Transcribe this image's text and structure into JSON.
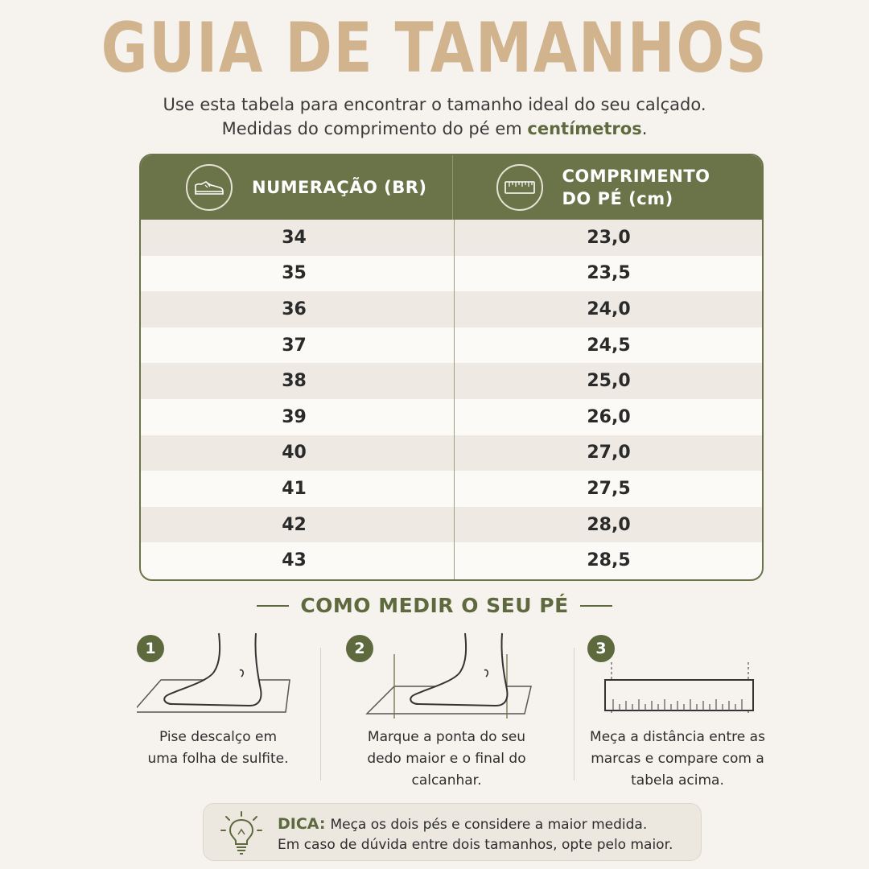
{
  "title": "GUIA DE TAMANHOS",
  "subtitle": {
    "line1": "Use esta tabela para encontrar o tamanho ideal do seu calçado.",
    "line2_prefix": "Medidas do comprimento do pé em ",
    "line2_emphasis": "centímetros",
    "line2_suffix": "."
  },
  "table": {
    "header_left": "NUMERAÇÃO (BR)",
    "header_left_icon": "sneaker-icon",
    "header_right_line1": "COMPRIMENTO",
    "header_right_line2": "DO PÉ (cm)",
    "header_right_icon": "ruler-icon",
    "rows": [
      {
        "size": "34",
        "length": "23,0"
      },
      {
        "size": "35",
        "length": "23,5"
      },
      {
        "size": "36",
        "length": "24,0"
      },
      {
        "size": "37",
        "length": "24,5"
      },
      {
        "size": "38",
        "length": "25,0"
      },
      {
        "size": "39",
        "length": "26,0"
      },
      {
        "size": "40",
        "length": "27,0"
      },
      {
        "size": "41",
        "length": "27,5"
      },
      {
        "size": "42",
        "length": "28,0"
      },
      {
        "size": "43",
        "length": "28,5"
      }
    ]
  },
  "how_to": {
    "title": "COMO MEDIR O SEU PÉ",
    "steps": [
      {
        "number": "1",
        "line1": "Pise descalço em",
        "line2": "uma folha de sulfite.",
        "line3": "",
        "icon": "foot-on-paper-icon"
      },
      {
        "number": "2",
        "line1": "Marque a ponta do seu",
        "line2": "dedo maior e o final do",
        "line3": "calcanhar.",
        "icon": "foot-marking-icon"
      },
      {
        "number": "3",
        "line1": "Meça a distância entre as",
        "line2": "marcas e compare com a",
        "line3": "tabela acima.",
        "icon": "ruler-measure-icon"
      }
    ]
  },
  "tip": {
    "label": "DICA:",
    "line1": "Meça os dois pés e considere a maior medida.",
    "line2": "Em caso de dúvida entre dois tamanhos, opte pelo maior.",
    "icon": "lightbulb-icon"
  },
  "colors": {
    "accent_green": "#6b7449",
    "title_tan": "#d1b48d",
    "background": "#f6f3ee"
  }
}
